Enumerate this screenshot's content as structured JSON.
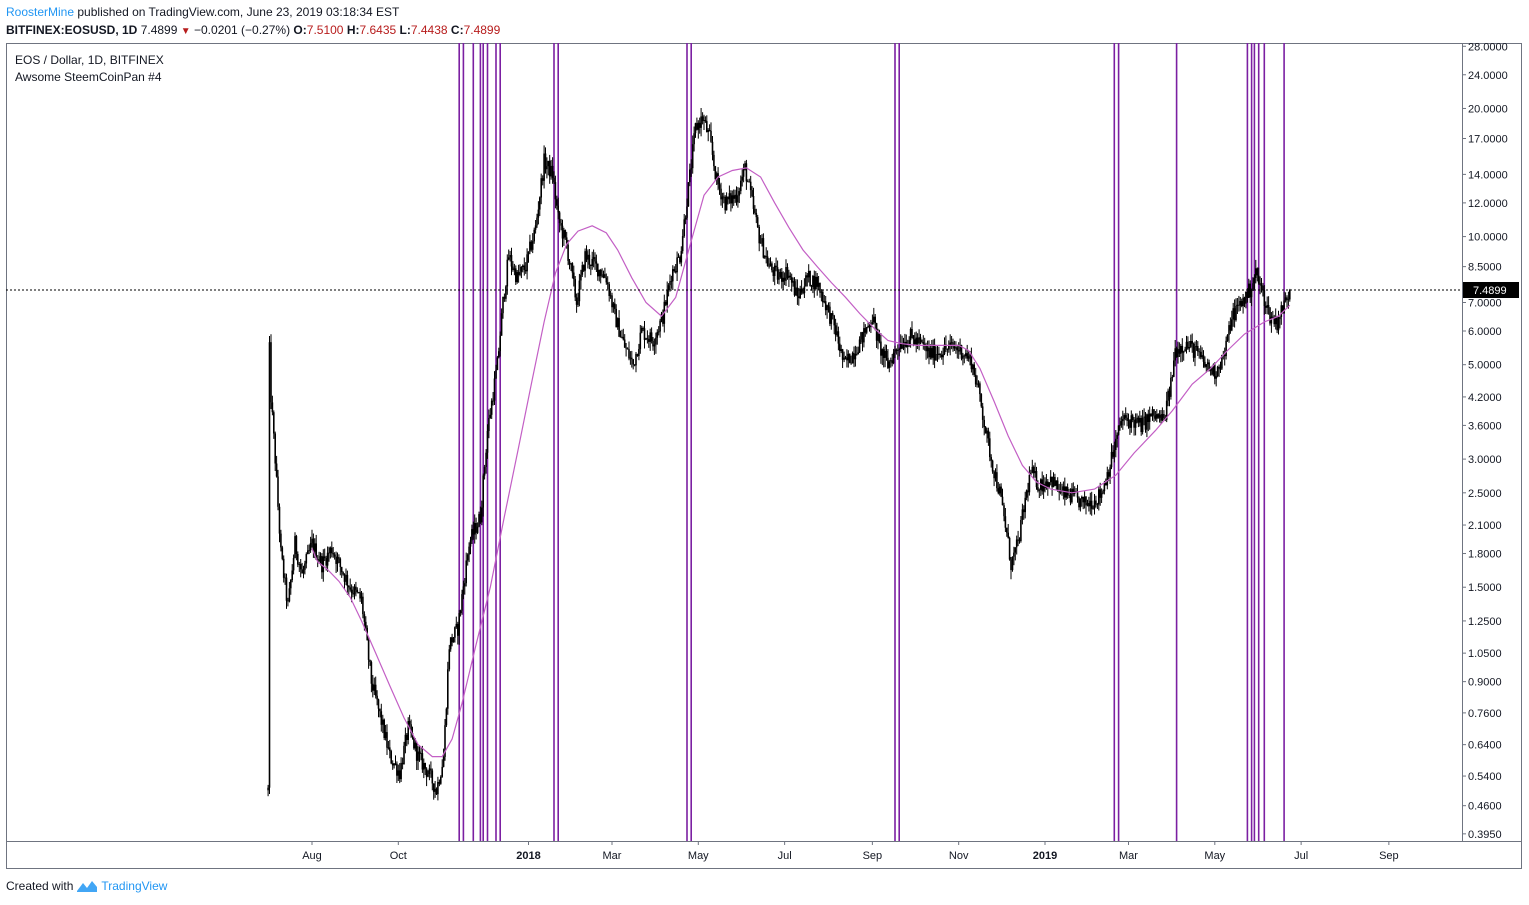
{
  "header": {
    "author": "RoosterMine",
    "published_text": "published on TradingView.com, June 23, 2019 03:18:34 EST",
    "symbol_line": "BITFINEX:EOSUSD, 1D",
    "last": "7.4899",
    "change": "−0.0201 (−0.27%)",
    "o_label": "O:",
    "o": "7.5100",
    "h_label": "H:",
    "h": "7.6435",
    "l_label": "L:",
    "l": "7.4438",
    "c_label": "C:",
    "c": "7.4899"
  },
  "legend": {
    "title": "EOS / Dollar, 1D, BITFINEX",
    "indicator": "Awsome SteemCoinPan #4"
  },
  "footer": {
    "created_with": "Created with",
    "brand": "TradingView",
    "logo_icon": "tradingview-logo-icon"
  },
  "colors": {
    "candles": "#000000",
    "moving_average": "#c35fc5",
    "vertical_lines": "#7b1fa2",
    "price_tag_bg": "#000000",
    "price_tag_text": "#ffffff"
  },
  "chart_data": {
    "type": "candlestick",
    "y_scale": "log",
    "ylim": [
      0.38,
      28.5
    ],
    "y_ticks": [
      "28.0000",
      "24.0000",
      "20.0000",
      "17.0000",
      "14.0000",
      "12.0000",
      "10.0000",
      "8.5000",
      "7.0000",
      "6.0000",
      "5.0000",
      "4.2000",
      "3.6000",
      "3.0000",
      "2.5000",
      "2.1000",
      "1.8000",
      "1.5000",
      "1.2500",
      "1.0500",
      "0.9000",
      "0.7600",
      "0.6400",
      "0.5400",
      "0.4600",
      "0.3950"
    ],
    "x_ticks": [
      {
        "label": "Aug",
        "date": "2017-08-01",
        "bold": false
      },
      {
        "label": "Oct",
        "date": "2017-10-01",
        "bold": false
      },
      {
        "label": "2018",
        "date": "2018-01-01",
        "bold": true
      },
      {
        "label": "Mar",
        "date": "2018-03-01",
        "bold": false
      },
      {
        "label": "May",
        "date": "2018-05-01",
        "bold": false
      },
      {
        "label": "Jul",
        "date": "2018-07-01",
        "bold": false
      },
      {
        "label": "Sep",
        "date": "2018-09-01",
        "bold": false
      },
      {
        "label": "Nov",
        "date": "2018-11-01",
        "bold": false
      },
      {
        "label": "2019",
        "date": "2019-01-01",
        "bold": true
      },
      {
        "label": "Mar",
        "date": "2019-03-01",
        "bold": false
      },
      {
        "label": "May",
        "date": "2019-05-01",
        "bold": false
      },
      {
        "label": "Jul",
        "date": "2019-07-01",
        "bold": false
      },
      {
        "label": "Sep",
        "date": "2019-09-01",
        "bold": false
      }
    ],
    "last_price": 7.4899,
    "last_price_label": "7.4899",
    "price_path": [
      [
        "2017-07-01",
        0.5
      ],
      [
        "2017-07-02",
        5.4
      ],
      [
        "2017-07-03",
        4.2
      ],
      [
        "2017-07-06",
        3.0
      ],
      [
        "2017-07-10",
        1.8
      ],
      [
        "2017-07-15",
        1.35
      ],
      [
        "2017-07-20",
        1.9
      ],
      [
        "2017-07-25",
        1.6
      ],
      [
        "2017-08-01",
        1.9
      ],
      [
        "2017-08-08",
        1.7
      ],
      [
        "2017-08-15",
        1.85
      ],
      [
        "2017-08-22",
        1.65
      ],
      [
        "2017-08-28",
        1.5
      ],
      [
        "2017-09-05",
        1.4
      ],
      [
        "2017-09-12",
        0.9
      ],
      [
        "2017-09-18",
        0.75
      ],
      [
        "2017-09-25",
        0.6
      ],
      [
        "2017-10-02",
        0.55
      ],
      [
        "2017-10-08",
        0.7
      ],
      [
        "2017-10-15",
        0.6
      ],
      [
        "2017-10-22",
        0.55
      ],
      [
        "2017-10-28",
        0.5
      ],
      [
        "2017-11-02",
        0.6
      ],
      [
        "2017-11-06",
        1.1
      ],
      [
        "2017-11-12",
        1.2
      ],
      [
        "2017-11-20",
        1.9
      ],
      [
        "2017-11-28",
        2.2
      ],
      [
        "2017-12-03",
        3.5
      ],
      [
        "2017-12-10",
        5.0
      ],
      [
        "2017-12-14",
        7.0
      ],
      [
        "2017-12-18",
        9.0
      ],
      [
        "2017-12-24",
        8.0
      ],
      [
        "2017-12-30",
        8.5
      ],
      [
        "2018-01-06",
        10.5
      ],
      [
        "2018-01-12",
        15.0
      ],
      [
        "2018-01-18",
        14.0
      ],
      [
        "2018-01-22",
        11.0
      ],
      [
        "2018-01-28",
        9.5
      ],
      [
        "2018-02-04",
        7.0
      ],
      [
        "2018-02-10",
        9.0
      ],
      [
        "2018-02-18",
        8.5
      ],
      [
        "2018-02-25",
        8.0
      ],
      [
        "2018-03-03",
        6.5
      ],
      [
        "2018-03-10",
        5.5
      ],
      [
        "2018-03-16",
        5.0
      ],
      [
        "2018-03-22",
        6.0
      ],
      [
        "2018-03-30",
        5.7
      ],
      [
        "2018-04-06",
        6.5
      ],
      [
        "2018-04-12",
        8.2
      ],
      [
        "2018-04-18",
        9.0
      ],
      [
        "2018-04-24",
        13.0
      ],
      [
        "2018-04-29",
        18.0
      ],
      [
        "2018-05-04",
        19.0
      ],
      [
        "2018-05-09",
        17.0
      ],
      [
        "2018-05-14",
        13.5
      ],
      [
        "2018-05-20",
        12.0
      ],
      [
        "2018-05-28",
        12.5
      ],
      [
        "2018-06-03",
        14.5
      ],
      [
        "2018-06-08",
        12.0
      ],
      [
        "2018-06-13",
        10.0
      ],
      [
        "2018-06-20",
        8.5
      ],
      [
        "2018-06-27",
        8.0
      ],
      [
        "2018-07-03",
        8.3
      ],
      [
        "2018-07-10",
        7.2
      ],
      [
        "2018-07-17",
        8.0
      ],
      [
        "2018-07-24",
        7.8
      ],
      [
        "2018-07-31",
        6.8
      ],
      [
        "2018-08-06",
        6.0
      ],
      [
        "2018-08-12",
        5.0
      ],
      [
        "2018-08-18",
        5.3
      ],
      [
        "2018-08-25",
        5.8
      ],
      [
        "2018-09-01",
        6.5
      ],
      [
        "2018-09-06",
        5.5
      ],
      [
        "2018-09-12",
        5.0
      ],
      [
        "2018-09-20",
        5.6
      ],
      [
        "2018-09-28",
        5.8
      ],
      [
        "2018-10-05",
        5.6
      ],
      [
        "2018-10-11",
        5.3
      ],
      [
        "2018-10-20",
        5.4
      ],
      [
        "2018-10-28",
        5.5
      ],
      [
        "2018-11-03",
        5.4
      ],
      [
        "2018-11-10",
        5.1
      ],
      [
        "2018-11-16",
        4.2
      ],
      [
        "2018-11-20",
        3.5
      ],
      [
        "2018-11-25",
        2.9
      ],
      [
        "2018-11-30",
        2.5
      ],
      [
        "2018-12-05",
        2.0
      ],
      [
        "2018-12-08",
        1.7
      ],
      [
        "2018-12-13",
        1.9
      ],
      [
        "2018-12-18",
        2.4
      ],
      [
        "2018-12-22",
        2.8
      ],
      [
        "2018-12-28",
        2.6
      ],
      [
        "2019-01-05",
        2.7
      ],
      [
        "2019-01-12",
        2.5
      ],
      [
        "2019-01-20",
        2.45
      ],
      [
        "2019-01-28",
        2.35
      ],
      [
        "2019-02-05",
        2.4
      ],
      [
        "2019-02-10",
        2.5
      ],
      [
        "2019-02-17",
        3.0
      ],
      [
        "2019-02-24",
        3.7
      ],
      [
        "2019-03-03",
        3.7
      ],
      [
        "2019-03-10",
        3.6
      ],
      [
        "2019-03-18",
        3.8
      ],
      [
        "2019-03-26",
        3.7
      ],
      [
        "2019-03-31",
        4.5
      ],
      [
        "2019-04-03",
        5.4
      ],
      [
        "2019-04-10",
        5.6
      ],
      [
        "2019-04-17",
        5.4
      ],
      [
        "2019-04-24",
        5.0
      ],
      [
        "2019-05-01",
        4.8
      ],
      [
        "2019-05-08",
        5.3
      ],
      [
        "2019-05-13",
        6.5
      ],
      [
        "2019-05-20",
        7.0
      ],
      [
        "2019-05-26",
        7.5
      ],
      [
        "2019-05-30",
        8.2
      ],
      [
        "2019-06-03",
        7.5
      ],
      [
        "2019-06-09",
        6.5
      ],
      [
        "2019-06-14",
        6.3
      ],
      [
        "2019-06-18",
        6.8
      ],
      [
        "2019-06-23",
        7.49
      ]
    ],
    "moving_average_path": [
      [
        "2017-08-01",
        1.85
      ],
      [
        "2017-08-05",
        1.72
      ],
      [
        "2017-08-12",
        1.65
      ],
      [
        "2017-08-20",
        1.55
      ],
      [
        "2017-08-28",
        1.42
      ],
      [
        "2017-09-05",
        1.25
      ],
      [
        "2017-09-15",
        1.05
      ],
      [
        "2017-09-25",
        0.88
      ],
      [
        "2017-10-05",
        0.74
      ],
      [
        "2017-10-15",
        0.64
      ],
      [
        "2017-10-25",
        0.6
      ],
      [
        "2017-11-01",
        0.6
      ],
      [
        "2017-11-08",
        0.66
      ],
      [
        "2017-11-15",
        0.8
      ],
      [
        "2017-11-25",
        1.1
      ],
      [
        "2017-12-05",
        1.5
      ],
      [
        "2017-12-15",
        2.2
      ],
      [
        "2017-12-25",
        3.2
      ],
      [
        "2018-01-03",
        4.5
      ],
      [
        "2018-01-12",
        6.3
      ],
      [
        "2018-01-20",
        8.2
      ],
      [
        "2018-01-28",
        9.6
      ],
      [
        "2018-02-05",
        10.3
      ],
      [
        "2018-02-15",
        10.6
      ],
      [
        "2018-02-25",
        10.2
      ],
      [
        "2018-03-05",
        9.3
      ],
      [
        "2018-03-15",
        8.0
      ],
      [
        "2018-03-25",
        7.0
      ],
      [
        "2018-04-05",
        6.5
      ],
      [
        "2018-04-15",
        7.2
      ],
      [
        "2018-04-25",
        9.5
      ],
      [
        "2018-05-05",
        12.5
      ],
      [
        "2018-05-15",
        13.8
      ],
      [
        "2018-05-25",
        14.3
      ],
      [
        "2018-06-04",
        14.5
      ],
      [
        "2018-06-14",
        13.8
      ],
      [
        "2018-06-24",
        12.0
      ],
      [
        "2018-07-04",
        10.5
      ],
      [
        "2018-07-14",
        9.3
      ],
      [
        "2018-07-24",
        8.5
      ],
      [
        "2018-08-03",
        7.8
      ],
      [
        "2018-08-13",
        7.2
      ],
      [
        "2018-08-23",
        6.6
      ],
      [
        "2018-09-02",
        6.1
      ],
      [
        "2018-09-12",
        5.7
      ],
      [
        "2018-09-22",
        5.6
      ],
      [
        "2018-10-02",
        5.55
      ],
      [
        "2018-10-12",
        5.55
      ],
      [
        "2018-10-22",
        5.55
      ],
      [
        "2018-11-01",
        5.55
      ],
      [
        "2018-11-08",
        5.4
      ],
      [
        "2018-11-16",
        4.9
      ],
      [
        "2018-11-26",
        4.1
      ],
      [
        "2018-12-06",
        3.4
      ],
      [
        "2018-12-16",
        2.9
      ],
      [
        "2018-12-26",
        2.65
      ],
      [
        "2019-01-05",
        2.55
      ],
      [
        "2019-01-20",
        2.5
      ],
      [
        "2019-02-05",
        2.55
      ],
      [
        "2019-02-20",
        2.75
      ],
      [
        "2019-03-05",
        3.1
      ],
      [
        "2019-03-20",
        3.5
      ],
      [
        "2019-04-01",
        3.9
      ],
      [
        "2019-04-15",
        4.5
      ],
      [
        "2019-04-28",
        4.9
      ],
      [
        "2019-05-10",
        5.4
      ],
      [
        "2019-05-22",
        5.9
      ],
      [
        "2019-06-05",
        6.3
      ],
      [
        "2019-06-15",
        6.5
      ],
      [
        "2019-06-23",
        6.9
      ]
    ],
    "vertical_lines": [
      "2017-11-13",
      "2017-11-16",
      "2017-11-23",
      "2017-11-28",
      "2017-11-30",
      "2017-12-03",
      "2017-12-09",
      "2017-12-12",
      "2018-01-19",
      "2018-01-22",
      "2018-04-23",
      "2018-04-26",
      "2018-09-17",
      "2018-09-20",
      "2019-02-19",
      "2019-02-22",
      "2019-04-04",
      "2019-05-24",
      "2019-05-27",
      "2019-05-29",
      "2019-06-01",
      "2019-06-05",
      "2019-06-19"
    ]
  }
}
